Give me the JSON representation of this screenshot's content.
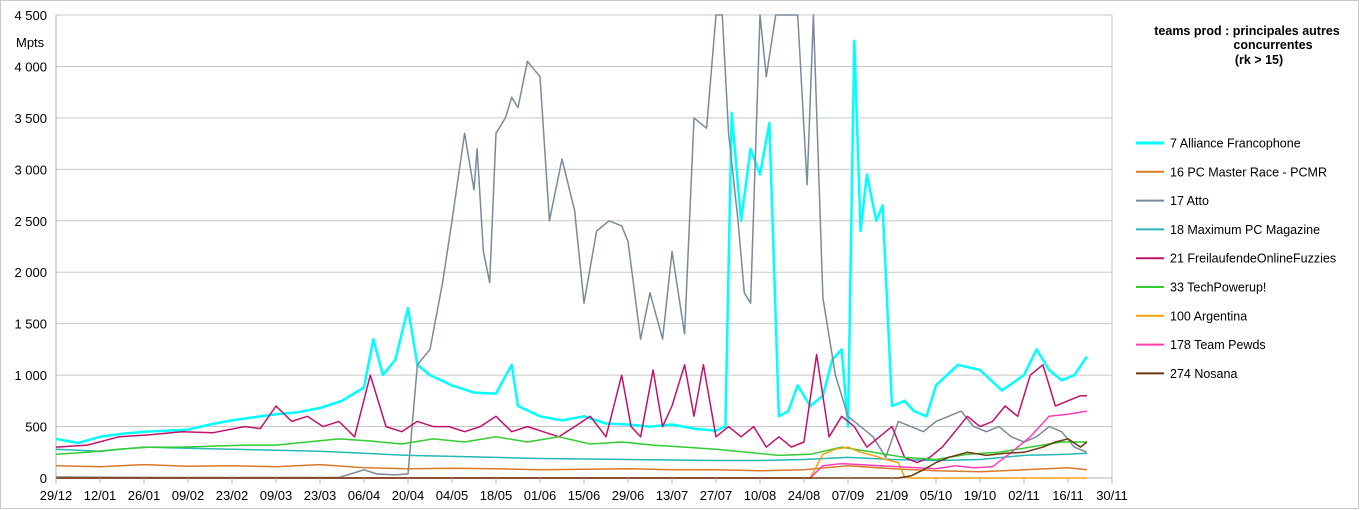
{
  "chart_data": {
    "type": "line",
    "title_lines": [
      "teams prod : principales autres",
      "concurrentes",
      "(rk > 15)"
    ],
    "ylabel": "Mpts",
    "ylim": [
      0,
      4500
    ],
    "y_ticks": [
      "0",
      "500",
      "1 000",
      "1 500",
      "2 000",
      "2 500",
      "3 000",
      "3 500",
      "4 000",
      "4 500"
    ],
    "y_tick_values": [
      0,
      500,
      1000,
      1500,
      2000,
      2500,
      3000,
      3500,
      4000,
      4500
    ],
    "x_ticks": [
      "29/12",
      "12/01",
      "26/01",
      "09/02",
      "23/02",
      "09/03",
      "23/03",
      "06/04",
      "20/04",
      "04/05",
      "18/05",
      "01/06",
      "15/06",
      "29/06",
      "13/07",
      "27/07",
      "10/08",
      "24/08",
      "07/09",
      "21/09",
      "05/10",
      "19/10",
      "02/11",
      "16/11",
      "30/11"
    ],
    "x_tick_days": [
      0,
      14,
      28,
      42,
      56,
      70,
      84,
      98,
      112,
      126,
      140,
      154,
      168,
      182,
      196,
      210,
      224,
      238,
      252,
      266,
      280,
      294,
      308,
      322,
      336
    ],
    "grid": true,
    "legend_position": "right",
    "series": [
      {
        "name": "7 Alliance Francophone",
        "color": "#00ffff",
        "width": 2.5,
        "x": [
          0,
          7,
          14,
          21,
          28,
          35,
          42,
          49,
          56,
          63,
          70,
          77,
          84,
          91,
          98,
          101,
          104,
          108,
          112,
          115,
          119,
          126,
          133,
          140,
          145,
          147,
          154,
          161,
          168,
          175,
          182,
          189,
          196,
          203,
          210,
          213,
          215,
          218,
          221,
          224,
          227,
          230,
          233,
          236,
          240,
          244,
          247,
          250,
          252,
          254,
          256,
          258,
          261,
          263,
          266,
          270,
          273,
          277,
          280,
          287,
          294,
          301,
          308,
          312,
          316,
          320,
          324,
          328
        ],
        "y": [
          380,
          340,
          400,
          430,
          450,
          460,
          470,
          520,
          560,
          590,
          620,
          640,
          680,
          750,
          880,
          1350,
          1000,
          1150,
          1650,
          1100,
          1000,
          900,
          830,
          820,
          1100,
          700,
          600,
          560,
          600,
          530,
          520,
          500,
          520,
          480,
          460,
          500,
          3550,
          2500,
          3200,
          2950,
          3450,
          600,
          650,
          900,
          700,
          800,
          1150,
          1250,
          500,
          4250,
          2400,
          2950,
          2500,
          2650,
          700,
          750,
          650,
          600,
          900,
          1100,
          1050,
          850,
          1000,
          1250,
          1050,
          950,
          1000,
          1180
        ]
      },
      {
        "name": "16 PC Master Race - PCMR",
        "color": "#d97a28",
        "width": 1.5,
        "x": [
          0,
          14,
          28,
          42,
          56,
          70,
          84,
          98,
          112,
          126,
          140,
          154,
          168,
          182,
          196,
          210,
          224,
          238,
          252,
          266,
          280,
          294,
          308,
          322,
          328
        ],
        "y": [
          120,
          110,
          130,
          115,
          120,
          110,
          130,
          100,
          90,
          95,
          90,
          80,
          85,
          90,
          80,
          80,
          70,
          80,
          120,
          90,
          70,
          60,
          80,
          100,
          80
        ]
      },
      {
        "name": "17 Atto",
        "color": "#7a8a9a",
        "width": 1.5,
        "x": [
          0,
          30,
          60,
          90,
          98,
          102,
          108,
          112,
          115,
          119,
          123,
          126,
          130,
          133,
          134,
          136,
          138,
          140,
          143,
          145,
          147,
          150,
          154,
          157,
          161,
          165,
          168,
          172,
          176,
          180,
          182,
          186,
          189,
          193,
          196,
          200,
          203,
          207,
          210,
          212,
          214,
          217,
          219,
          221,
          224,
          226,
          229,
          232,
          236,
          239,
          241,
          244,
          248,
          252,
          256,
          260,
          264,
          268,
          272,
          276,
          280,
          284,
          288,
          292,
          296,
          300,
          304,
          308,
          312,
          316,
          320,
          324,
          328
        ],
        "y": [
          10,
          5,
          5,
          5,
          80,
          40,
          30,
          40,
          1100,
          1250,
          1900,
          2500,
          3350,
          2800,
          3200,
          2200,
          1900,
          3350,
          3500,
          3700,
          3600,
          4050,
          3900,
          2500,
          3100,
          2600,
          1700,
          2400,
          2500,
          2450,
          2300,
          1350,
          1800,
          1350,
          2200,
          1400,
          3500,
          3400,
          4500,
          4500,
          3350,
          2500,
          1800,
          1700,
          4500,
          3900,
          4500,
          4500,
          4500,
          2850,
          4500,
          1750,
          1000,
          600,
          500,
          400,
          200,
          550,
          500,
          450,
          550,
          600,
          650,
          500,
          450,
          500,
          400,
          350,
          400,
          500,
          450,
          300,
          250
        ]
      },
      {
        "name": "18 Maximum PC Magazine",
        "color": "#26b7b7",
        "width": 1.5,
        "x": [
          0,
          14,
          28,
          42,
          56,
          70,
          84,
          98,
          112,
          126,
          140,
          154,
          168,
          182,
          196,
          210,
          224,
          238,
          252,
          266,
          280,
          294,
          308,
          322,
          328
        ],
        "y": [
          280,
          260,
          300,
          290,
          280,
          270,
          260,
          240,
          220,
          210,
          200,
          190,
          185,
          180,
          175,
          170,
          170,
          180,
          200,
          180,
          170,
          180,
          220,
          230,
          240
        ]
      },
      {
        "name": "21 FreilaufendeOnlineFuzzies",
        "color": "#c0126b",
        "width": 1.5,
        "x": [
          0,
          10,
          20,
          30,
          40,
          50,
          60,
          65,
          70,
          75,
          80,
          85,
          90,
          95,
          100,
          105,
          110,
          115,
          120,
          125,
          130,
          135,
          140,
          145,
          150,
          155,
          160,
          165,
          170,
          175,
          180,
          183,
          186,
          190,
          193,
          196,
          200,
          203,
          206,
          210,
          214,
          218,
          222,
          226,
          230,
          234,
          238,
          242,
          246,
          250,
          254,
          258,
          262,
          266,
          270,
          274,
          278,
          282,
          286,
          290,
          294,
          298,
          302,
          306,
          310,
          314,
          318,
          322,
          326,
          328
        ],
        "y": [
          300,
          320,
          400,
          420,
          450,
          440,
          500,
          480,
          700,
          550,
          600,
          500,
          550,
          400,
          1000,
          500,
          450,
          550,
          500,
          500,
          450,
          500,
          600,
          450,
          500,
          450,
          400,
          500,
          600,
          400,
          1000,
          500,
          400,
          1050,
          500,
          700,
          1100,
          600,
          1100,
          400,
          500,
          400,
          500,
          300,
          400,
          300,
          350,
          1200,
          400,
          600,
          500,
          300,
          400,
          500,
          200,
          150,
          200,
          300,
          450,
          600,
          500,
          550,
          700,
          600,
          1000,
          1100,
          700,
          750,
          800,
          800
        ]
      },
      {
        "name": "33 TechPowerup!",
        "color": "#33cc33",
        "width": 1.5,
        "x": [
          0,
          10,
          20,
          30,
          40,
          50,
          60,
          70,
          80,
          90,
          100,
          110,
          120,
          130,
          140,
          150,
          160,
          170,
          180,
          190,
          200,
          210,
          220,
          230,
          240,
          250,
          260,
          270,
          280,
          290,
          300,
          310,
          320,
          328
        ],
        "y": [
          230,
          250,
          280,
          300,
          300,
          310,
          320,
          320,
          350,
          380,
          360,
          330,
          380,
          350,
          400,
          350,
          400,
          330,
          350,
          320,
          300,
          280,
          250,
          220,
          230,
          300,
          250,
          200,
          180,
          230,
          250,
          300,
          350,
          350
        ]
      },
      {
        "name": "100 Argentina",
        "color": "#f5a20f",
        "width": 1.5,
        "x": [
          0,
          240,
          244,
          248,
          252,
          256,
          260,
          264,
          268,
          270,
          272,
          328
        ],
        "y": [
          0,
          0,
          230,
          280,
          300,
          250,
          220,
          180,
          150,
          10,
          0,
          0
        ]
      },
      {
        "name": "178 Team Pewds",
        "color": "#ff3db4",
        "width": 1.5,
        "x": [
          0,
          240,
          244,
          250,
          256,
          262,
          268,
          274,
          280,
          286,
          292,
          298,
          304,
          310,
          316,
          322,
          328
        ],
        "y": [
          0,
          0,
          120,
          140,
          130,
          120,
          110,
          100,
          90,
          120,
          100,
          110,
          250,
          400,
          600,
          620,
          650
        ]
      },
      {
        "name": "274 Nosana",
        "color": "#6b3a10",
        "width": 1.5,
        "x": [
          0,
          268,
          272,
          276,
          280,
          284,
          290,
          296,
          302,
          308,
          314,
          318,
          322,
          326,
          328
        ],
        "y": [
          0,
          0,
          20,
          80,
          150,
          200,
          250,
          220,
          240,
          250,
          300,
          350,
          380,
          300,
          350
        ]
      }
    ]
  }
}
